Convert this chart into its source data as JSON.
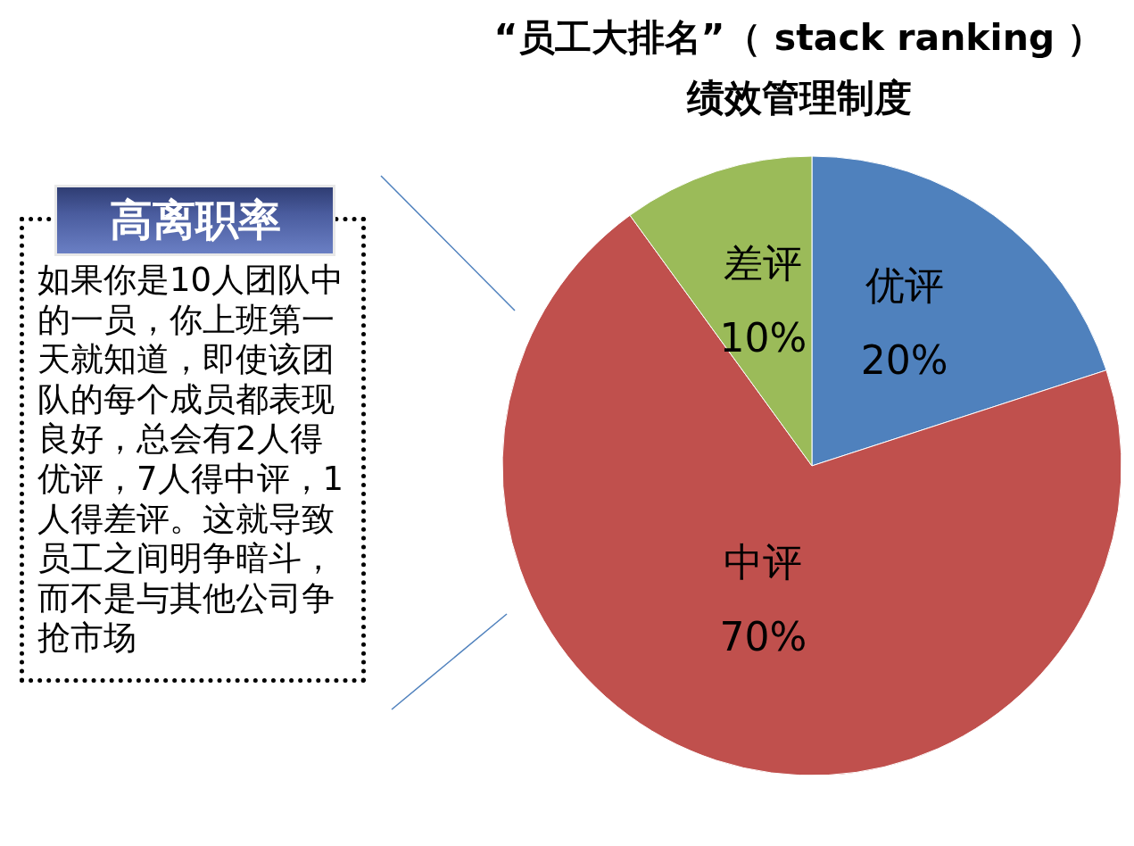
{
  "chart_data": {
    "type": "pie",
    "title": "“员工大排名”（ stack ranking ）",
    "subtitle": "绩效管理制度",
    "categories": [
      "优评",
      "中评",
      "差评"
    ],
    "values": [
      20,
      70,
      10
    ],
    "colors": [
      "#4f81bd",
      "#c0504d",
      "#9bbb59"
    ],
    "value_labels": [
      "20%",
      "70%",
      "10%"
    ],
    "annotations": [
      "高离职率",
      "如果你是10人团队中的一员，你上班第一天就知道，即使该团队的每个成员都表现良好，总会有2人得优评，7人得中评，1人得差评。这就导致员工之间明争暗斗，而不是与其他公司争抢市场"
    ]
  }
}
